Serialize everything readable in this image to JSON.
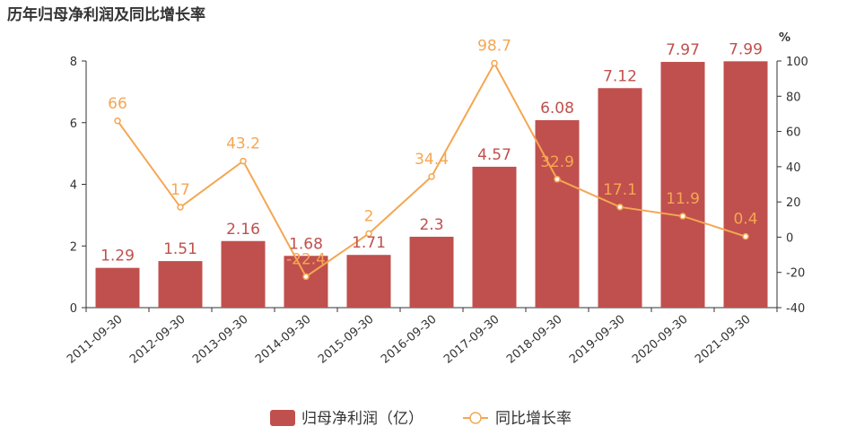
{
  "chart_data": {
    "type": "bar",
    "title": "历年归母净利润及同比增长率",
    "categories": [
      "2011-09-30",
      "2012-09-30",
      "2013-09-30",
      "2014-09-30",
      "2015-09-30",
      "2016-09-30",
      "2017-09-30",
      "2018-09-30",
      "2019-09-30",
      "2020-09-30",
      "2021-09-30"
    ],
    "series": [
      {
        "name": "归母净利润（亿）",
        "type": "bar",
        "axis": "left",
        "values": [
          1.29,
          1.51,
          2.16,
          1.68,
          1.71,
          2.3,
          4.57,
          6.08,
          7.12,
          7.97,
          7.99
        ],
        "labels": [
          "1.29",
          "1.51",
          "2.16",
          "1.68",
          "1.71",
          "2.3",
          "4.57",
          "6.08",
          "7.12",
          "7.97",
          "7.99"
        ]
      },
      {
        "name": "同比增长率",
        "type": "line",
        "axis": "right",
        "values": [
          66,
          17,
          43.2,
          -22.4,
          2,
          34.4,
          98.7,
          32.9,
          17.1,
          11.9,
          0.4
        ],
        "labels": [
          "66",
          "17",
          "43.2",
          "-22.4",
          "2",
          "34.4",
          "98.7",
          "32.9",
          "17.1",
          "11.9",
          "0.4"
        ]
      }
    ],
    "y_left": {
      "ylim": [
        0,
        8
      ],
      "ticks": [
        "0",
        "2",
        "4",
        "6",
        "8"
      ]
    },
    "y_right": {
      "unit": "%",
      "ylim": [
        -40,
        100
      ],
      "ticks": [
        "-40",
        "-20",
        "0",
        "20",
        "40",
        "60",
        "80",
        "100"
      ]
    },
    "legend_position": "bottom",
    "grid": false,
    "colors": {
      "bar": "#c0504d",
      "bar_label": "#c0504d",
      "line": "#f5a652",
      "line_label": "#f5a652",
      "axis": "#333333"
    }
  }
}
